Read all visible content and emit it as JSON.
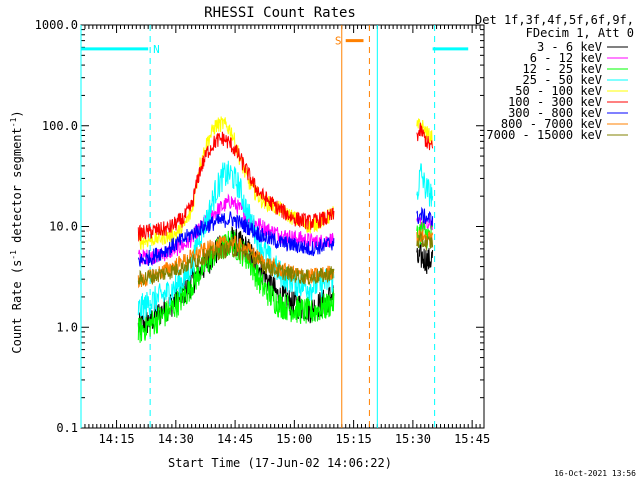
{
  "chart_data": {
    "type": "line",
    "title": "RHESSI Count Rates",
    "xlabel": "Start Time (17-Jun-02 14:06:22)",
    "ylabel_main": "Count Rate (s",
    "ylabel_sup1": "-1",
    "ylabel_mid": " detector segment",
    "ylabel_sup2": "-1",
    "ylabel_end": ")",
    "y_scale": "log",
    "ylim": [
      0.1,
      1000
    ],
    "xlim_minutes_after_1406": [
      0,
      102
    ],
    "x_ticks": [
      {
        "label": "14:15",
        "minute": 9
      },
      {
        "label": "14:30",
        "minute": 24
      },
      {
        "label": "14:45",
        "minute": 39
      },
      {
        "label": "15:00",
        "minute": 54
      },
      {
        "label": "15:15",
        "minute": 69
      },
      {
        "label": "15:30",
        "minute": 84
      },
      {
        "label": "15:45",
        "minute": 99
      }
    ],
    "y_ticks": [
      {
        "label": "0.1",
        "value": 0.1
      },
      {
        "label": "1.0",
        "value": 1
      },
      {
        "label": "10.0",
        "value": 10
      },
      {
        "label": "100.0",
        "value": 100
      },
      {
        "label": "1000.0",
        "value": 1000
      }
    ],
    "legend_header": [
      "Det 1f,3f,4f,5f,6f,9f,",
      "FDecim 1, Att 0"
    ],
    "timestamp": "16-Oct-2021 13:56",
    "series": [
      {
        "name": "3 - 6 keV",
        "color": "#000000",
        "seg1": [
          [
            14.5,
            1.0
          ],
          [
            18,
            1.2
          ],
          [
            22,
            1.6
          ],
          [
            26,
            2.2
          ],
          [
            30,
            3.5
          ],
          [
            34,
            5.5
          ],
          [
            38,
            7.5
          ],
          [
            42,
            6.0
          ],
          [
            46,
            3.5
          ],
          [
            50,
            2.0
          ],
          [
            54,
            1.7
          ],
          [
            58,
            1.5
          ],
          [
            62,
            1.8
          ],
          [
            64,
            2.2
          ]
        ],
        "seg2": [
          [
            85,
            4.5
          ],
          [
            86,
            5.0
          ],
          [
            87,
            4.8
          ],
          [
            88,
            4.5
          ],
          [
            89,
            5.0
          ]
        ]
      },
      {
        "name": "6 - 12 keV",
        "color": "#ff00ff",
        "seg1": [
          [
            14.5,
            5.0
          ],
          [
            18,
            5.0
          ],
          [
            22,
            5.5
          ],
          [
            26,
            6.5
          ],
          [
            28,
            7.5
          ],
          [
            30,
            9.5
          ],
          [
            34,
            14
          ],
          [
            38,
            18
          ],
          [
            41,
            14
          ],
          [
            44,
            11
          ],
          [
            48,
            9.0
          ],
          [
            52,
            8.0
          ],
          [
            56,
            7.5
          ],
          [
            60,
            7.0
          ],
          [
            64,
            7.5
          ]
        ],
        "seg2": [
          [
            85,
            10
          ],
          [
            86,
            11
          ],
          [
            87,
            10.5
          ],
          [
            88,
            10
          ],
          [
            89,
            11
          ]
        ]
      },
      {
        "name": "12 - 25 keV",
        "color": "#00ff00",
        "seg1": [
          [
            14.5,
            0.9
          ],
          [
            18,
            1.1
          ],
          [
            22,
            1.4
          ],
          [
            26,
            2.0
          ],
          [
            30,
            3.5
          ],
          [
            34,
            5.5
          ],
          [
            38,
            7.0
          ],
          [
            42,
            5.0
          ],
          [
            46,
            2.5
          ],
          [
            50,
            1.7
          ],
          [
            54,
            1.5
          ],
          [
            58,
            1.4
          ],
          [
            62,
            1.6
          ],
          [
            64,
            1.8
          ]
        ],
        "seg2": [
          [
            85,
            8
          ],
          [
            86,
            9
          ],
          [
            87,
            8.5
          ],
          [
            88,
            8
          ],
          [
            89,
            8.5
          ]
        ]
      },
      {
        "name": "25 - 50 keV",
        "color": "#00ffff",
        "seg1": [
          [
            14.5,
            1.5
          ],
          [
            18,
            1.8
          ],
          [
            22,
            2.2
          ],
          [
            26,
            3.0
          ],
          [
            28,
            4.0
          ],
          [
            30,
            8.0
          ],
          [
            32,
            12
          ],
          [
            34,
            22
          ],
          [
            36,
            32
          ],
          [
            38,
            33
          ],
          [
            40,
            25
          ],
          [
            42,
            14
          ],
          [
            46,
            6
          ],
          [
            50,
            3.5
          ],
          [
            54,
            2.8
          ],
          [
            58,
            2.5
          ],
          [
            62,
            2.8
          ],
          [
            64,
            3.0
          ]
        ],
        "seg2": [
          [
            85,
            20
          ],
          [
            86,
            35
          ],
          [
            87,
            25
          ],
          [
            88,
            22
          ],
          [
            89,
            20
          ]
        ]
      },
      {
        "name": "50 - 100 keV",
        "color": "#ffff00",
        "seg1": [
          [
            14.5,
            7.0
          ],
          [
            18,
            7.5
          ],
          [
            22,
            8.0
          ],
          [
            24,
            8.5
          ],
          [
            26,
            10
          ],
          [
            28,
            14
          ],
          [
            30,
            40
          ],
          [
            32,
            70
          ],
          [
            34,
            100
          ],
          [
            36,
            105
          ],
          [
            38,
            90
          ],
          [
            40,
            50
          ],
          [
            42,
            30
          ],
          [
            44,
            22
          ],
          [
            46,
            18
          ],
          [
            50,
            15
          ],
          [
            54,
            12
          ],
          [
            58,
            10
          ],
          [
            62,
            12
          ],
          [
            64,
            14
          ]
        ],
        "seg2": [
          [
            85,
            95
          ],
          [
            86,
            105
          ],
          [
            87,
            90
          ],
          [
            88,
            80
          ],
          [
            89,
            75
          ]
        ]
      },
      {
        "name": "100 - 300 keV",
        "color": "#ff0000",
        "seg1": [
          [
            14.5,
            8.5
          ],
          [
            18,
            9.0
          ],
          [
            22,
            9.5
          ],
          [
            26,
            12
          ],
          [
            28,
            16
          ],
          [
            30,
            35
          ],
          [
            32,
            55
          ],
          [
            34,
            70
          ],
          [
            36,
            75
          ],
          [
            38,
            65
          ],
          [
            40,
            50
          ],
          [
            42,
            35
          ],
          [
            44,
            25
          ],
          [
            46,
            20
          ],
          [
            50,
            15
          ],
          [
            54,
            12
          ],
          [
            58,
            11
          ],
          [
            62,
            12
          ],
          [
            64,
            13
          ]
        ],
        "seg2": [
          [
            85,
            80
          ],
          [
            86,
            90
          ],
          [
            87,
            75
          ],
          [
            88,
            65
          ],
          [
            89,
            60
          ]
        ]
      },
      {
        "name": "300 - 800 keV",
        "color": "#0000ff",
        "seg1": [
          [
            14.5,
            4.5
          ],
          [
            18,
            5.0
          ],
          [
            22,
            6.0
          ],
          [
            26,
            7.5
          ],
          [
            30,
            9.5
          ],
          [
            34,
            11
          ],
          [
            38,
            12
          ],
          [
            42,
            10
          ],
          [
            46,
            8.0
          ],
          [
            50,
            7.0
          ],
          [
            54,
            6.5
          ],
          [
            58,
            6.0
          ],
          [
            62,
            6.5
          ],
          [
            64,
            7.0
          ]
        ],
        "seg2": [
          [
            85,
            12
          ],
          [
            86,
            13
          ],
          [
            87,
            12.5
          ],
          [
            88,
            12
          ],
          [
            89,
            12
          ]
        ]
      },
      {
        "name": "800 - 7000 keV",
        "color": "#ff8000",
        "seg1": [
          [
            14.5,
            2.8
          ],
          [
            18,
            3.2
          ],
          [
            22,
            3.8
          ],
          [
            26,
            4.5
          ],
          [
            30,
            5.5
          ],
          [
            34,
            6.5
          ],
          [
            38,
            7.0
          ],
          [
            42,
            6.0
          ],
          [
            46,
            4.5
          ],
          [
            50,
            3.8
          ],
          [
            54,
            3.4
          ],
          [
            58,
            3.2
          ],
          [
            62,
            3.4
          ],
          [
            64,
            3.6
          ]
        ],
        "seg2": [
          [
            85,
            7.5
          ],
          [
            86,
            8.0
          ],
          [
            87,
            7.8
          ],
          [
            88,
            7.5
          ],
          [
            89,
            7.5
          ]
        ]
      },
      {
        "name": "7000 - 15000 keV",
        "color": "#808000",
        "seg1": [
          [
            14.5,
            3.0
          ],
          [
            18,
            3.2
          ],
          [
            22,
            3.5
          ],
          [
            26,
            4.0
          ],
          [
            30,
            4.8
          ],
          [
            34,
            5.5
          ],
          [
            38,
            6.0
          ],
          [
            42,
            5.2
          ],
          [
            46,
            4.2
          ],
          [
            50,
            3.6
          ],
          [
            54,
            3.3
          ],
          [
            58,
            3.1
          ],
          [
            62,
            3.3
          ],
          [
            64,
            3.5
          ]
        ],
        "seg2": [
          [
            85,
            7.0
          ],
          [
            86,
            7.2
          ],
          [
            87,
            7.0
          ],
          [
            88,
            6.8
          ],
          [
            89,
            7.0
          ]
        ]
      }
    ],
    "annotations": [
      {
        "text": "N",
        "color": "#00ffff",
        "minute": 17.5,
        "value": 580
      },
      {
        "text": "S",
        "color": "#ff8000",
        "minute": 63.5,
        "value": 700
      }
    ],
    "markers": [
      {
        "type": "bar",
        "color": "#00ffff",
        "from": 0,
        "to": 17,
        "value": 580
      },
      {
        "type": "bar",
        "color": "#00ffff",
        "from": 89,
        "to": 98,
        "value": 580
      },
      {
        "type": "bar",
        "color": "#ff8000",
        "from": 67,
        "to": 71.5,
        "value": 700
      },
      {
        "type": "vline-solid",
        "color": "#00ffff",
        "minute": 0
      },
      {
        "type": "vline-dashed",
        "color": "#00ffff",
        "minute": 17.5
      },
      {
        "type": "vline-solid",
        "color": "#ff8000",
        "minute": 66
      },
      {
        "type": "vline-dashed",
        "color": "#ff8000",
        "minute": 73
      },
      {
        "type": "vline-solid",
        "color": "#00ffff",
        "minute": 75
      },
      {
        "type": "vline-dashed",
        "color": "#00ffff",
        "minute": 89.5
      }
    ]
  }
}
